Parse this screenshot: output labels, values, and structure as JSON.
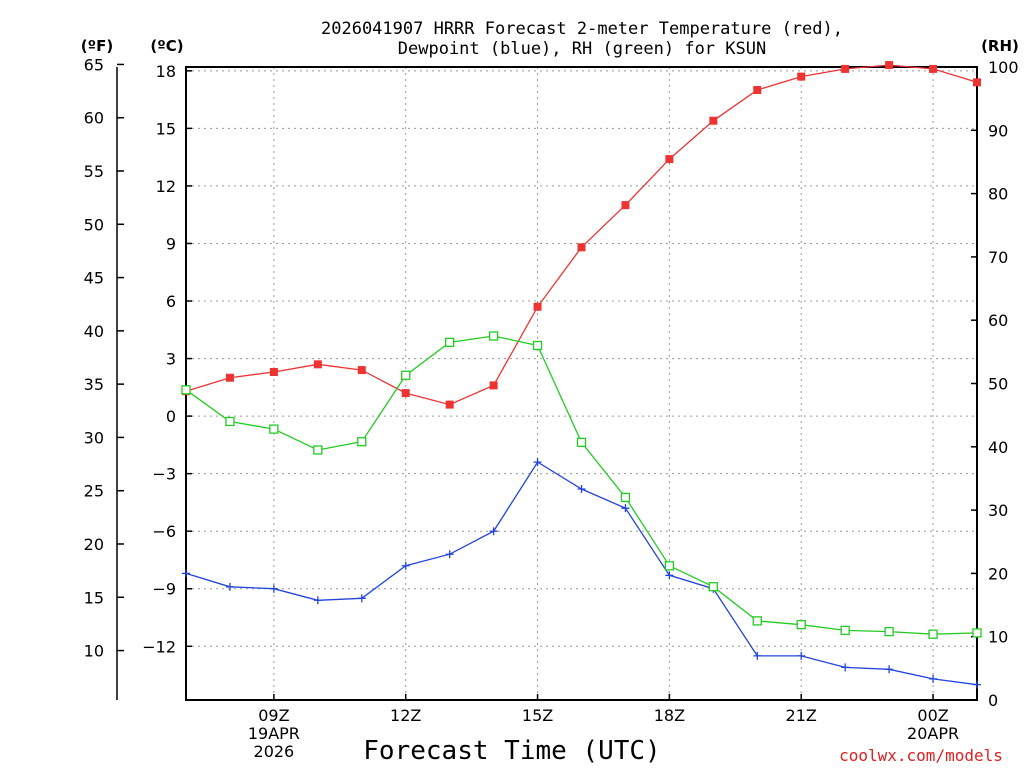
{
  "chart_data": {
    "type": "line",
    "title_line1": "2026041907 HRRR Forecast 2-meter Temperature (red),",
    "title_line2": "Dewpoint (blue), RH (green) for KSUN",
    "xlabel": "Forecast Time (UTC)",
    "credit": "coolwx.com/models",
    "units": {
      "fahrenheit": "(ºF)",
      "celsius": "(ºC)",
      "rh": "(RH)"
    },
    "x_hours": [
      7,
      8,
      9,
      10,
      11,
      12,
      13,
      14,
      15,
      16,
      17,
      18,
      19,
      20,
      21,
      22,
      23,
      24,
      25
    ],
    "xlim": [
      7,
      25
    ],
    "x_ticks": [
      {
        "hour": 9,
        "lines": [
          "09Z",
          "19APR",
          "2026"
        ]
      },
      {
        "hour": 12,
        "lines": [
          "12Z"
        ]
      },
      {
        "hour": 15,
        "lines": [
          "15Z"
        ]
      },
      {
        "hour": 18,
        "lines": [
          "18Z"
        ]
      },
      {
        "hour": 21,
        "lines": [
          "21Z"
        ]
      },
      {
        "hour": 24,
        "lines": [
          "00Z",
          "20APR"
        ]
      }
    ],
    "celsius_ticks": [
      "18",
      "15",
      "12",
      "9",
      "6",
      "3",
      "0",
      "−3",
      "−6",
      "−9",
      "−12"
    ],
    "celsius_tick_values": [
      18,
      15,
      12,
      9,
      6,
      3,
      0,
      -3,
      -6,
      -9,
      -12
    ],
    "celsius_lim": [
      -14.8,
      18.2
    ],
    "fahrenheit_ticks": [
      "65",
      "60",
      "55",
      "50",
      "45",
      "40",
      "35",
      "30",
      "25",
      "20",
      "15",
      "10"
    ],
    "fahrenheit_tick_values": [
      65,
      60,
      55,
      50,
      45,
      40,
      35,
      30,
      25,
      20,
      15,
      10
    ],
    "rh_ticks": [
      "100",
      "90",
      "80",
      "70",
      "60",
      "50",
      "40",
      "30",
      "20",
      "10",
      "0"
    ],
    "rh_tick_values": [
      100,
      90,
      80,
      70,
      60,
      50,
      40,
      30,
      20,
      10,
      0
    ],
    "rh_lim": [
      0,
      100
    ],
    "series": [
      {
        "name": "2-meter Temperature",
        "axis": "celsius",
        "color": "#ee3333",
        "marker": "filled-square",
        "values": [
          1.3,
          2.0,
          2.3,
          2.7,
          2.4,
          1.2,
          0.6,
          1.6,
          5.7,
          8.8,
          11.0,
          13.4,
          15.4,
          17.0,
          17.7,
          18.1,
          18.3,
          18.1,
          17.4
        ]
      },
      {
        "name": "Dewpoint",
        "axis": "celsius",
        "color": "#2244dd",
        "marker": "plus",
        "values": [
          -8.2,
          -8.9,
          -9.0,
          -9.6,
          -9.5,
          -7.8,
          -7.2,
          -6.0,
          -2.4,
          -3.8,
          -4.8,
          -8.3,
          -9.0,
          -12.5,
          -12.5,
          -13.1,
          -13.2,
          -13.7,
          -14.0
        ]
      },
      {
        "name": "RH",
        "axis": "rh",
        "color": "#22cc22",
        "marker": "open-square",
        "values": [
          49.0,
          44.0,
          42.8,
          39.5,
          40.8,
          51.3,
          56.5,
          57.5,
          56.0,
          40.7,
          32.0,
          21.2,
          17.9,
          12.5,
          11.9,
          11.0,
          10.8,
          10.4,
          10.6
        ]
      }
    ]
  }
}
